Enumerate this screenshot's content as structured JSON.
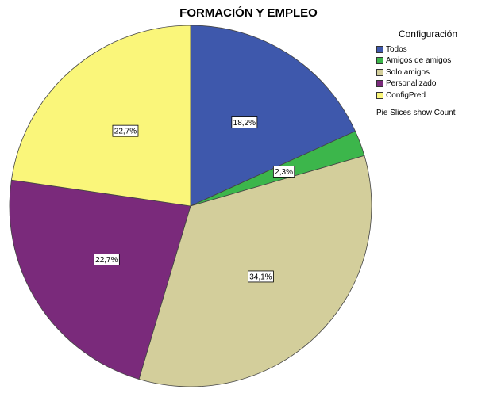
{
  "chart_data": {
    "type": "pie",
    "title": "FORMACIÓN Y EMPLEO",
    "legend_title": "Configuración",
    "legend_note": "Pie Slices show Count",
    "legend_position": "top-right",
    "slices": [
      {
        "label": "Todos",
        "value": 18.2,
        "display": "18,2%",
        "color": "#3e58ac"
      },
      {
        "label": "Amigos de amigos",
        "value": 2.3,
        "display": "2,3%",
        "color": "#3cb64b"
      },
      {
        "label": "Solo amigos",
        "value": 34.1,
        "display": "34,1%",
        "color": "#d3ce9b"
      },
      {
        "label": "Personalizado",
        "value": 22.7,
        "display": "22,7%",
        "color": "#7a2a7b"
      },
      {
        "label": "ConfigPred",
        "value": 22.7,
        "display": "22,7%",
        "color": "#faf67a"
      }
    ]
  }
}
